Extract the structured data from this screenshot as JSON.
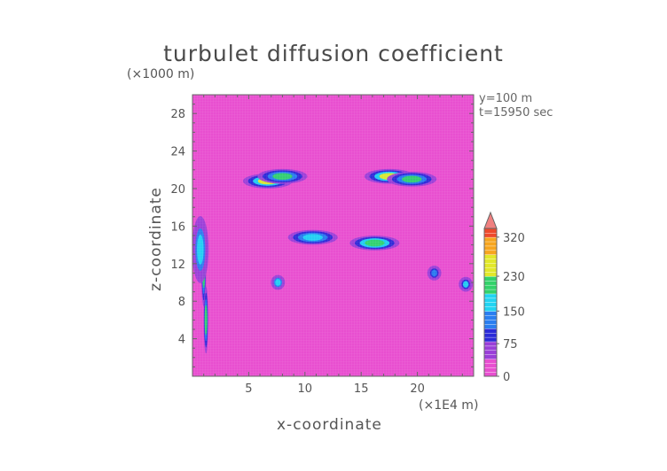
{
  "chart_data": {
    "type": "heatmap",
    "title": "turbulet diffusion coefficient",
    "xlabel": "x-coordinate",
    "ylabel": "z-coordinate",
    "x_unit": "(×1E4 m)",
    "y_unit": "(×1000 m)",
    "annotations": [
      "y=100 m",
      "t=15950 sec"
    ],
    "xlim": [
      0,
      25
    ],
    "ylim": [
      0,
      30
    ],
    "x_ticks": [
      5,
      10,
      15,
      20
    ],
    "y_ticks": [
      4,
      8,
      12,
      16,
      20,
      24,
      28
    ],
    "colorbar": {
      "ticks": [
        0,
        75,
        150,
        230,
        320
      ],
      "range": [
        0,
        340
      ],
      "extend": "max"
    },
    "background_value": 10,
    "features": [
      {
        "x": 6.7,
        "z": 20.8,
        "value": 230
      },
      {
        "x": 8.0,
        "z": 21.3,
        "value": 200
      },
      {
        "x": 17.5,
        "z": 21.3,
        "value": 235
      },
      {
        "x": 19.5,
        "z": 21.0,
        "value": 190
      },
      {
        "x": 10.7,
        "z": 14.8,
        "value": 170
      },
      {
        "x": 16.2,
        "z": 14.2,
        "value": 215
      },
      {
        "x": 1.0,
        "z": 11.0,
        "value": 210
      },
      {
        "x": 1.2,
        "z": 6.0,
        "value": 200
      },
      {
        "x": 0.7,
        "z": 13.5,
        "value": 160
      },
      {
        "x": 7.6,
        "z": 10.0,
        "value": 160
      },
      {
        "x": 24.3,
        "z": 9.8,
        "value": 150
      },
      {
        "x": 21.5,
        "z": 11.0,
        "value": 120
      }
    ]
  },
  "colors": {
    "background": "#e84fd0",
    "scale": [
      "#e84fd0",
      "#9a3fd8",
      "#2a2ad8",
      "#2a7ef0",
      "#22d4f2",
      "#33d26a",
      "#e2e82a",
      "#f7a51e",
      "#ee4a2c"
    ]
  }
}
